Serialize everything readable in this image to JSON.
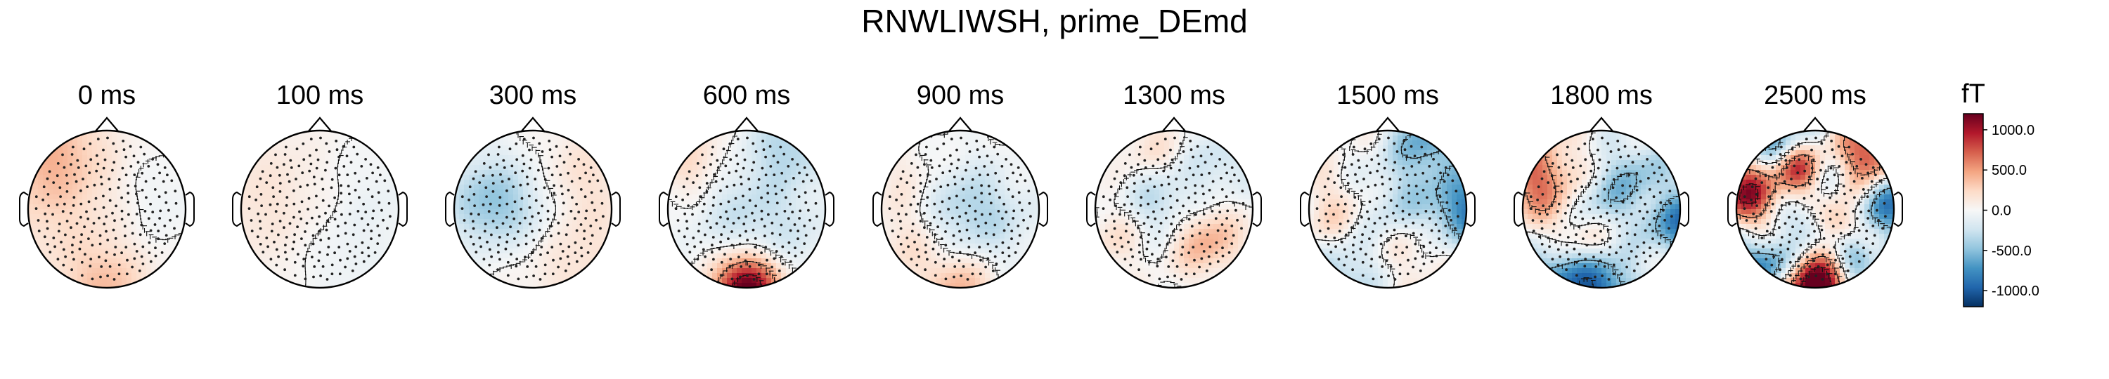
{
  "title": "RNWLIWSH, prime_DEmd",
  "colorbar": {
    "unit": "fT",
    "ticks": [
      1000.0,
      500.0,
      0.0,
      -500.0,
      -1000.0
    ],
    "tick_labels": [
      "1000.0",
      "500.0",
      "0.0",
      "-500.0",
      "-1000.0"
    ],
    "vmin": -1200,
    "vmax": 1200,
    "colormap": [
      "#053061",
      "#2166ac",
      "#4393c3",
      "#92c5de",
      "#d1e5f0",
      "#f7f7f7",
      "#fddbc7",
      "#f4a582",
      "#d6604d",
      "#b2182b",
      "#67001f"
    ]
  },
  "chart_data": {
    "type": "heatmap",
    "title": "RNWLIWSH, prime_DEmd",
    "xlabel": "",
    "ylabel": "",
    "unit": "fT",
    "value_range": [
      -1200,
      1200
    ],
    "panels": [
      {
        "time_label": "0 ms",
        "time_ms": 0,
        "pattern": "mostly positive (red) left/frontal-left region, weak negative (blue) right-center, occipital positive edge"
      },
      {
        "time_label": "100 ms",
        "time_ms": 100,
        "pattern": "weak positive left half, weak negative right half"
      },
      {
        "time_label": "300 ms",
        "time_ms": 300,
        "pattern": "negative (blue) left-central cluster, positive right-lower region"
      },
      {
        "time_label": "600 ms",
        "time_ms": 600,
        "pattern": "mixed, strong positive occipital rim (dark red), negative frontal-right"
      },
      {
        "time_label": "900 ms",
        "time_ms": 900,
        "pattern": "weak mixed, negative center, positive occipital rim"
      },
      {
        "time_label": "1300 ms",
        "time_ms": 1300,
        "pattern": "mixed patches, negative center-left, positive lower-right"
      },
      {
        "time_label": "1500 ms",
        "time_ms": 1500,
        "pattern": "negative right rim and frontal-right, mixed interior"
      },
      {
        "time_label": "1800 ms",
        "time_ms": 1800,
        "pattern": "strong negative rim (dark blue) bottom and right, positive left-frontal"
      },
      {
        "time_label": "2500 ms",
        "time_ms": 2500,
        "pattern": "many strong patches, positive left and occipital, negative lower-left and right"
      }
    ]
  }
}
